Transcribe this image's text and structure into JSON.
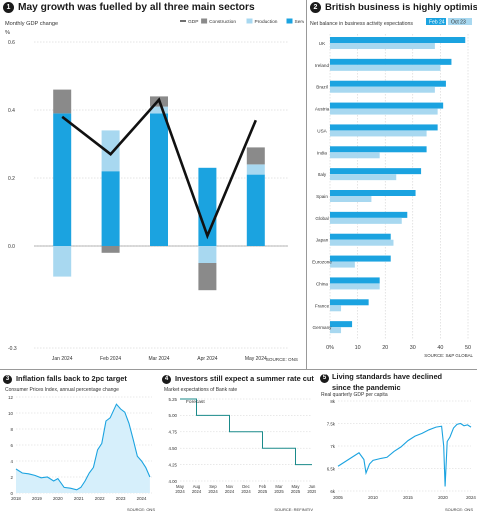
{
  "panels": {
    "p1": {
      "num": "1",
      "title": "May growth was fuelled by all three main sectors",
      "subtitle": "Monthly GDP change",
      "unit": "%",
      "legend": [
        "GDP",
        "Construction",
        "Production",
        "Services"
      ],
      "source": "SOURCE: ONS"
    },
    "p2": {
      "num": "2",
      "title": "British business is highly optimistic",
      "subtitle": "Net balance in business activity expectations",
      "legend": [
        "Feb 24",
        "Oct 23"
      ],
      "source": "SOURCE: S&P GLOBAL"
    },
    "p3": {
      "num": "3",
      "title": "Inflation falls back to 2pc target",
      "subtitle": "Consumer Prices Index, annual percentage change",
      "source": "SOURCE: ONS"
    },
    "p4": {
      "num": "4",
      "title": "Investors still expect a summer rate cut",
      "subtitle": "Market expectations of Bank rate",
      "annotation": "Forecast",
      "source": "SOURCE: REFINITIV"
    },
    "p5": {
      "num": "5",
      "title_line1": "Living standards have declined",
      "title_line2": "since the pandemic",
      "subtitle": "Real quarterly GDP per capita",
      "source": "SOURCE: ONS"
    }
  },
  "colors": {
    "services": "#1ba3e0",
    "production": "#a8d8f0",
    "construction": "#8a8a8a",
    "gdp": "#111111",
    "feb24": "#1ba3e0",
    "oct23": "#a8d8f0",
    "area_fill": "#d6effb",
    "line": "#1ba3e0"
  },
  "chart_data": [
    {
      "type": "bar",
      "stacked": true,
      "categories": [
        "Jan 2024",
        "Feb 2024",
        "Mar 2024",
        "Apr 2024",
        "May 2024"
      ],
      "ylim": [
        -0.3,
        0.6
      ],
      "yticks": [
        -0.3,
        0.0,
        0.2,
        0.4,
        0.6
      ],
      "series": [
        {
          "name": "Services",
          "values": [
            0.39,
            0.22,
            0.39,
            0.23,
            0.21
          ]
        },
        {
          "name": "Production",
          "values": [
            -0.09,
            0.12,
            0.02,
            -0.05,
            0.03
          ]
        },
        {
          "name": "Construction",
          "values": [
            0.07,
            -0.02,
            0.03,
            -0.08,
            0.05
          ]
        },
        {
          "name": "GDP",
          "type": "line",
          "values": [
            0.38,
            0.27,
            0.43,
            0.03,
            0.37
          ]
        }
      ]
    },
    {
      "type": "bar",
      "orientation": "horizontal",
      "categories": [
        "UK",
        "Ireland",
        "Brazil",
        "Austria",
        "USA",
        "India",
        "Italy",
        "Spain",
        "Global",
        "Japan",
        "Eurozone",
        "China",
        "France",
        "Germany"
      ],
      "xlim": [
        0,
        50
      ],
      "xticks": [
        0,
        10,
        20,
        30,
        40,
        50
      ],
      "xtick_labels": [
        "0%",
        "10",
        "20",
        "30",
        "40",
        "50"
      ],
      "series": [
        {
          "name": "Feb 24",
          "values": [
            49,
            44,
            42,
            41,
            39,
            35,
            33,
            31,
            28,
            22,
            22,
            18,
            14,
            8
          ]
        },
        {
          "name": "Oct 23",
          "values": [
            38,
            40,
            38,
            39,
            35,
            18,
            24,
            15,
            26,
            23,
            9,
            18,
            4,
            4
          ]
        }
      ]
    },
    {
      "type": "area",
      "xlim": [
        2018,
        2024.5
      ],
      "ylim": [
        0,
        12
      ],
      "xticks": [
        2018,
        2019,
        2020,
        2021,
        2022,
        2023,
        2024
      ],
      "xtick_labels": [
        "2018",
        "2019",
        "2020",
        "2021",
        "2022",
        "2023",
        "2024"
      ],
      "yticks": [
        0,
        2,
        4,
        6,
        8,
        10,
        12
      ],
      "x": [
        2018.0,
        2018.3,
        2018.6,
        2018.9,
        2019.2,
        2019.5,
        2019.8,
        2020.0,
        2020.3,
        2020.6,
        2020.9,
        2021.1,
        2021.3,
        2021.5,
        2021.7,
        2021.9,
        2022.1,
        2022.3,
        2022.5,
        2022.8,
        2023.0,
        2023.2,
        2023.4,
        2023.6,
        2023.8,
        2024.0,
        2024.2,
        2024.4
      ],
      "values": [
        3.0,
        2.5,
        2.4,
        2.2,
        1.9,
        2.0,
        1.5,
        1.8,
        0.7,
        0.6,
        0.4,
        0.7,
        1.5,
        2.5,
        3.2,
        5.4,
        6.2,
        9.0,
        9.4,
        11.1,
        10.5,
        10.1,
        8.7,
        6.7,
        4.6,
        4.0,
        3.2,
        2.0
      ]
    },
    {
      "type": "line",
      "step": true,
      "categories": [
        "May\n2024",
        "Aug\n2024",
        "Sep\n2024",
        "Nov\n2024",
        "Dec\n2024",
        "Feb\n2025",
        "Mar\n2025",
        "May\n2025",
        "Jun\n2025"
      ],
      "ylim": [
        4.0,
        5.25
      ],
      "yticks": [
        4.0,
        4.25,
        4.5,
        4.75,
        5.0,
        5.25
      ],
      "ytick_labels": [
        "4.00",
        "4.25",
        "4.50",
        "4.75",
        "5.00",
        "5.25"
      ],
      "values": [
        5.25,
        5.0,
        5.0,
        4.75,
        4.75,
        4.5,
        4.5,
        4.25,
        4.25
      ]
    },
    {
      "type": "line",
      "xlim": [
        2005,
        2024
      ],
      "ylim": [
        6000,
        8000
      ],
      "xticks": [
        2005,
        2010,
        2015,
        2020,
        2024
      ],
      "xtick_labels": [
        "2005",
        "2010",
        "2015",
        "2020",
        "2024"
      ],
      "yticks": [
        6000,
        6500,
        7000,
        7500,
        8000
      ],
      "ytick_labels": [
        "6k",
        "6.5k",
        "7k",
        "7.5k",
        "8k"
      ],
      "x": [
        2005,
        2006,
        2007,
        2008,
        2008.7,
        2009,
        2009.5,
        2010,
        2011,
        2012,
        2013,
        2014,
        2015,
        2016,
        2017,
        2018,
        2019,
        2019.8,
        2020.1,
        2020.3,
        2020.6,
        2021,
        2021.5,
        2022,
        2022.5,
        2023,
        2023.5,
        2024
      ],
      "values": [
        6550,
        6650,
        6750,
        6850,
        6700,
        6400,
        6600,
        6680,
        6720,
        6750,
        6880,
        6980,
        7120,
        7220,
        7280,
        7360,
        7420,
        7440,
        7000,
        6100,
        7100,
        7200,
        7400,
        7480,
        7500,
        7450,
        7470,
        7420
      ]
    }
  ]
}
